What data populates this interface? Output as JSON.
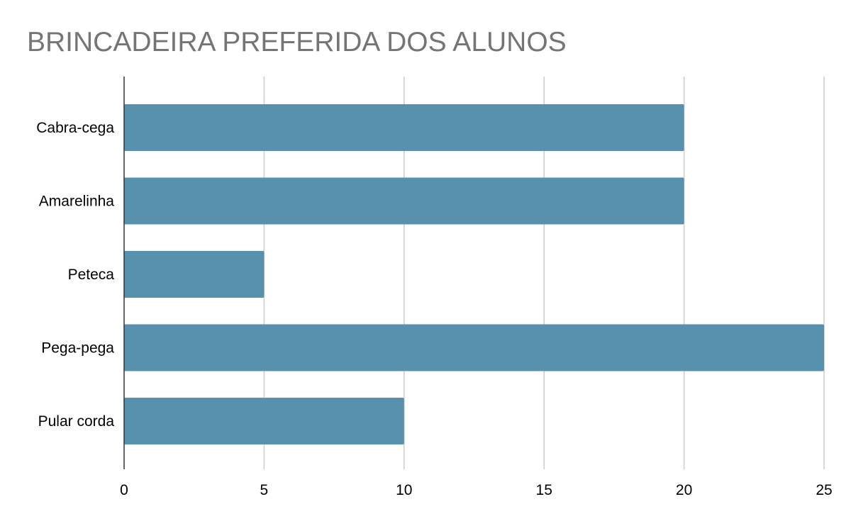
{
  "chart_data": {
    "type": "bar",
    "orientation": "horizontal",
    "title": "BRINCADEIRA PREFERIDA DOS ALUNOS",
    "categories": [
      "Cabra-cega",
      "Amarelinha",
      "Peteca",
      "Pega-pega",
      "Pular corda"
    ],
    "values": [
      20,
      20,
      5,
      25,
      10
    ],
    "xlim": [
      0,
      25
    ],
    "xticks": [
      "0",
      "5",
      "10",
      "15",
      "20",
      "25"
    ],
    "grid": true,
    "legend": "none",
    "colors": {
      "bar": "#5891AD",
      "grid": "#CCCCCC",
      "axis": "#333333",
      "title": "#757575"
    }
  }
}
